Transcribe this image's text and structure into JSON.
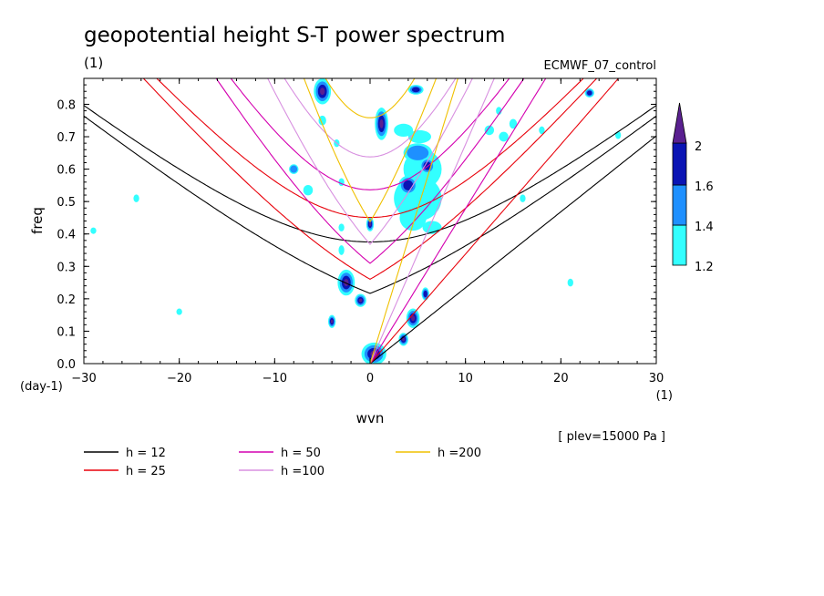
{
  "chart_data": {
    "type": "heatmap",
    "title": "geopotential height S-T power spectrum",
    "subtitle_left": "(1)",
    "subtitle_right": "ECMWF_07_control",
    "xlabel": "wvn",
    "ylabel": "freq",
    "x_unit": "(1)",
    "y_unit": "(day-1)",
    "plev_note": "[ plev=15000 Pa ]",
    "xlim": [
      -30,
      30
    ],
    "ylim": [
      0,
      0.88
    ],
    "x_ticks": [
      -30,
      -20,
      -10,
      0,
      10,
      20,
      30
    ],
    "x_tick_labels": [
      "−30",
      "−20",
      "−10",
      "0",
      "10",
      "20",
      "30"
    ],
    "y_ticks": [
      0,
      0.1,
      0.2,
      0.3,
      0.4,
      0.5,
      0.6,
      0.7,
      0.8
    ],
    "y_tick_labels": [
      "0.0",
      "0.1",
      "0.2",
      "0.3",
      "0.4",
      "0.5",
      "0.6",
      "0.7",
      "0.8"
    ],
    "grid": false,
    "colorbar": {
      "levels": [
        1.2,
        1.4,
        1.6,
        2
      ],
      "labels": [
        "1.2",
        "1.4",
        "1.6",
        "2"
      ],
      "colors": [
        "#33ffff",
        "#1e90ff",
        "#0a14b4",
        "#5a2090"
      ]
    },
    "dispersion_curves": [
      {
        "name": "h = 12",
        "h": 12,
        "color": "#000000"
      },
      {
        "name": "h = 25",
        "h": 25,
        "color": "#e8000a"
      },
      {
        "name": "h = 50",
        "h": 50,
        "color": "#d400b0"
      },
      {
        "name": "h =100",
        "h": 100,
        "color": "#d890e0"
      },
      {
        "name": "h =200",
        "h": 200,
        "color": "#f0c000"
      }
    ],
    "blobs": [
      {
        "x": 1.2,
        "y": 0.74,
        "rx": 0.7,
        "ry": 0.05,
        "level": 4
      },
      {
        "x": -5.0,
        "y": 0.84,
        "rx": 0.9,
        "ry": 0.04,
        "level": 4
      },
      {
        "x": 4.8,
        "y": 0.845,
        "rx": 0.8,
        "ry": 0.015,
        "level": 3
      },
      {
        "x": 23.0,
        "y": 0.835,
        "rx": 0.5,
        "ry": 0.014,
        "level": 3
      },
      {
        "x": -2.5,
        "y": 0.25,
        "rx": 0.9,
        "ry": 0.04,
        "level": 4
      },
      {
        "x": -1.0,
        "y": 0.195,
        "rx": 0.6,
        "ry": 0.02,
        "level": 4
      },
      {
        "x": -4.0,
        "y": 0.13,
        "rx": 0.4,
        "ry": 0.02,
        "level": 4
      },
      {
        "x": 0.0,
        "y": 0.43,
        "rx": 0.4,
        "ry": 0.022,
        "level": 4
      },
      {
        "x": 0.4,
        "y": 0.03,
        "rx": 1.3,
        "ry": 0.035,
        "level": 4
      },
      {
        "x": 4.5,
        "y": 0.14,
        "rx": 0.7,
        "ry": 0.03,
        "level": 4
      },
      {
        "x": 3.5,
        "y": 0.075,
        "rx": 0.5,
        "ry": 0.02,
        "level": 4
      },
      {
        "x": 5.8,
        "y": 0.215,
        "rx": 0.4,
        "ry": 0.02,
        "level": 3
      },
      {
        "x": 5.5,
        "y": 0.46,
        "rx": 0.6,
        "ry": 0.02,
        "level": 3
      },
      {
        "x": 4.5,
        "y": 0.45,
        "rx": 1.4,
        "ry": 0.04,
        "level": 1
      },
      {
        "x": 5.0,
        "y": 0.51,
        "rx": 2.5,
        "ry": 0.07,
        "level": 1
      },
      {
        "x": 5.5,
        "y": 0.6,
        "rx": 2.0,
        "ry": 0.06,
        "level": 1
      },
      {
        "x": 5.0,
        "y": 0.65,
        "rx": 1.5,
        "ry": 0.03,
        "level": 2
      },
      {
        "x": 4.0,
        "y": 0.55,
        "rx": 1.0,
        "ry": 0.03,
        "level": 3
      },
      {
        "x": 6.0,
        "y": 0.61,
        "rx": 0.8,
        "ry": 0.025,
        "level": 3
      },
      {
        "x": 5.2,
        "y": 0.7,
        "rx": 1.2,
        "ry": 0.02,
        "level": 1
      },
      {
        "x": 3.5,
        "y": 0.72,
        "rx": 1.0,
        "ry": 0.02,
        "level": 1
      },
      {
        "x": 6.5,
        "y": 0.42,
        "rx": 1.0,
        "ry": 0.02,
        "level": 1
      },
      {
        "x": -6.5,
        "y": 0.535,
        "rx": 0.5,
        "ry": 0.016,
        "level": 1
      },
      {
        "x": -8.0,
        "y": 0.6,
        "rx": 0.5,
        "ry": 0.015,
        "level": 2
      },
      {
        "x": -5.0,
        "y": 0.75,
        "rx": 0.4,
        "ry": 0.015,
        "level": 1
      },
      {
        "x": -24.5,
        "y": 0.51,
        "rx": 0.3,
        "ry": 0.012,
        "level": 1
      },
      {
        "x": -3.0,
        "y": 0.42,
        "rx": 0.3,
        "ry": 0.012,
        "level": 1
      },
      {
        "x": -3.0,
        "y": 0.56,
        "rx": 0.3,
        "ry": 0.012,
        "level": 1
      },
      {
        "x": 15.0,
        "y": 0.74,
        "rx": 0.4,
        "ry": 0.015,
        "level": 1
      },
      {
        "x": 14.0,
        "y": 0.7,
        "rx": 0.5,
        "ry": 0.015,
        "level": 1
      },
      {
        "x": 12.5,
        "y": 0.72,
        "rx": 0.5,
        "ry": 0.015,
        "level": 1
      },
      {
        "x": 13.5,
        "y": 0.78,
        "rx": 0.3,
        "ry": 0.012,
        "level": 1
      },
      {
        "x": 18.0,
        "y": 0.72,
        "rx": 0.3,
        "ry": 0.012,
        "level": 1
      },
      {
        "x": 16.0,
        "y": 0.51,
        "rx": 0.3,
        "ry": 0.012,
        "level": 1
      },
      {
        "x": 26.0,
        "y": 0.705,
        "rx": 0.3,
        "ry": 0.012,
        "level": 1
      },
      {
        "x": 21.0,
        "y": 0.25,
        "rx": 0.3,
        "ry": 0.012,
        "level": 1
      },
      {
        "x": -29.0,
        "y": 0.41,
        "rx": 0.3,
        "ry": 0.01,
        "level": 1
      },
      {
        "x": -20.0,
        "y": 0.16,
        "rx": 0.3,
        "ry": 0.01,
        "level": 1
      },
      {
        "x": -3.0,
        "y": 0.35,
        "rx": 0.3,
        "ry": 0.015,
        "level": 1
      },
      {
        "x": -3.5,
        "y": 0.68,
        "rx": 0.3,
        "ry": 0.012,
        "level": 1
      }
    ]
  }
}
